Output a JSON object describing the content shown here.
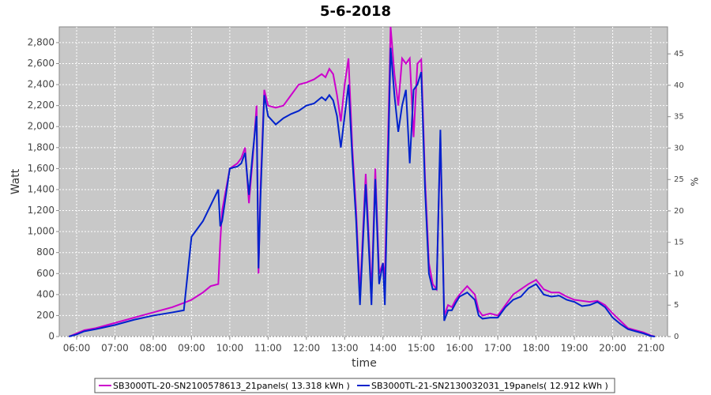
{
  "chart_data": {
    "type": "line",
    "title": "5-6-2018",
    "x_label": "time",
    "y_label": "Watt",
    "y2_label": "%",
    "x": [
      5.8,
      6.0,
      6.2,
      6.5,
      7.0,
      7.5,
      8.0,
      8.5,
      8.8,
      9.0,
      9.3,
      9.5,
      9.7,
      9.75,
      9.8,
      10.0,
      10.2,
      10.3,
      10.4,
      10.5,
      10.6,
      10.7,
      10.75,
      10.8,
      10.9,
      11.0,
      11.2,
      11.4,
      11.6,
      11.8,
      12.0,
      12.2,
      12.4,
      12.5,
      12.6,
      12.7,
      12.8,
      12.9,
      13.0,
      13.1,
      13.2,
      13.3,
      13.4,
      13.55,
      13.65,
      13.7,
      13.8,
      13.9,
      14.0,
      14.05,
      14.2,
      14.3,
      14.4,
      14.5,
      14.6,
      14.7,
      14.8,
      14.9,
      15.0,
      15.1,
      15.2,
      15.3,
      15.4,
      15.5,
      15.6,
      15.7,
      15.8,
      15.9,
      16.0,
      16.2,
      16.4,
      16.5,
      16.6,
      16.8,
      17.0,
      17.2,
      17.4,
      17.6,
      17.8,
      18.0,
      18.2,
      18.4,
      18.6,
      18.8,
      19.0,
      19.2,
      19.4,
      19.6,
      19.8,
      20.0,
      20.2,
      20.4,
      20.6,
      20.8,
      21.0,
      21.1
    ],
    "series": [
      {
        "name": "SB3000TL-20-SN2100578613_21panels( 13.318 kWh )",
        "color": "#cc00cc",
        "values": [
          0,
          30,
          60,
          80,
          130,
          180,
          230,
          280,
          320,
          350,
          420,
          480,
          500,
          900,
          1200,
          1600,
          1650,
          1700,
          1800,
          1270,
          1700,
          2200,
          600,
          1400,
          2350,
          2200,
          2180,
          2200,
          2300,
          2400,
          2420,
          2450,
          2500,
          2470,
          2550,
          2500,
          2300,
          2050,
          2400,
          2650,
          1800,
          1200,
          400,
          1550,
          800,
          400,
          1600,
          600,
          700,
          550,
          2950,
          2500,
          2200,
          2650,
          2600,
          2650,
          1900,
          2600,
          2640,
          1500,
          700,
          500,
          450,
          1900,
          200,
          300,
          280,
          350,
          400,
          480,
          400,
          250,
          200,
          220,
          200,
          300,
          400,
          450,
          500,
          540,
          450,
          420,
          420,
          380,
          350,
          340,
          330,
          340,
          300,
          220,
          150,
          80,
          60,
          40,
          10,
          0
        ]
      },
      {
        "name": "SB3000TL-21-SN2130032031_19panels( 12.912 kWh )",
        "color": "#0022cc",
        "values": [
          0,
          20,
          50,
          70,
          110,
          160,
          200,
          230,
          250,
          950,
          1100,
          1250,
          1400,
          1050,
          1100,
          1600,
          1620,
          1650,
          1750,
          1350,
          1750,
          2100,
          650,
          1300,
          2300,
          2100,
          2020,
          2080,
          2120,
          2150,
          2200,
          2220,
          2280,
          2250,
          2300,
          2250,
          2100,
          1800,
          2100,
          2400,
          1700,
          1100,
          300,
          1450,
          700,
          300,
          1500,
          500,
          700,
          300,
          2750,
          2300,
          1950,
          2200,
          2350,
          1650,
          2350,
          2400,
          2520,
          1400,
          600,
          450,
          450,
          1970,
          150,
          250,
          250,
          320,
          380,
          420,
          350,
          200,
          170,
          180,
          180,
          280,
          350,
          380,
          460,
          500,
          400,
          380,
          390,
          350,
          330,
          290,
          300,
          330,
          280,
          180,
          120,
          70,
          50,
          30,
          5,
          0
        ]
      }
    ],
    "xlim": [
      5.546,
      21.433
    ],
    "xticks": [
      {
        "value": 6,
        "label": "06:00"
      },
      {
        "value": 7,
        "label": "07:00"
      },
      {
        "value": 8,
        "label": "08:00"
      },
      {
        "value": 9,
        "label": "09:00"
      },
      {
        "value": 10,
        "label": "10:00"
      },
      {
        "value": 11,
        "label": "11:00"
      },
      {
        "value": 12,
        "label": "12:00"
      },
      {
        "value": 13,
        "label": "13:00"
      },
      {
        "value": 14,
        "label": "14:00"
      },
      {
        "value": 15,
        "label": "15:00"
      },
      {
        "value": 16,
        "label": "16:00"
      },
      {
        "value": 17,
        "label": "17:00"
      },
      {
        "value": 18,
        "label": "18:00"
      },
      {
        "value": 19,
        "label": "19:00"
      },
      {
        "value": 20,
        "label": "20:00"
      },
      {
        "value": 21,
        "label": "21:00"
      }
    ],
    "ylim": [
      0,
      2950
    ],
    "yticks": [
      0,
      200,
      400,
      600,
      800,
      {
        "value": 1000,
        "label": "1,000"
      },
      {
        "value": 1200,
        "label": "1,200"
      },
      {
        "value": 1400,
        "label": "1,400"
      },
      {
        "value": 1600,
        "label": "1,600"
      },
      {
        "value": 1800,
        "label": "1,800"
      },
      {
        "value": 2000,
        "label": "2,000"
      },
      {
        "value": 2200,
        "label": "2,200"
      },
      {
        "value": 2400,
        "label": "2,400"
      },
      {
        "value": 2600,
        "label": "2,600"
      },
      {
        "value": 2800,
        "label": "2,800"
      }
    ],
    "y2lim": [
      0,
      49.3
    ],
    "y2ticks": [
      0,
      5,
      10,
      15,
      20,
      25,
      30,
      35,
      40,
      45
    ],
    "grid": true,
    "legend": "bottom"
  }
}
